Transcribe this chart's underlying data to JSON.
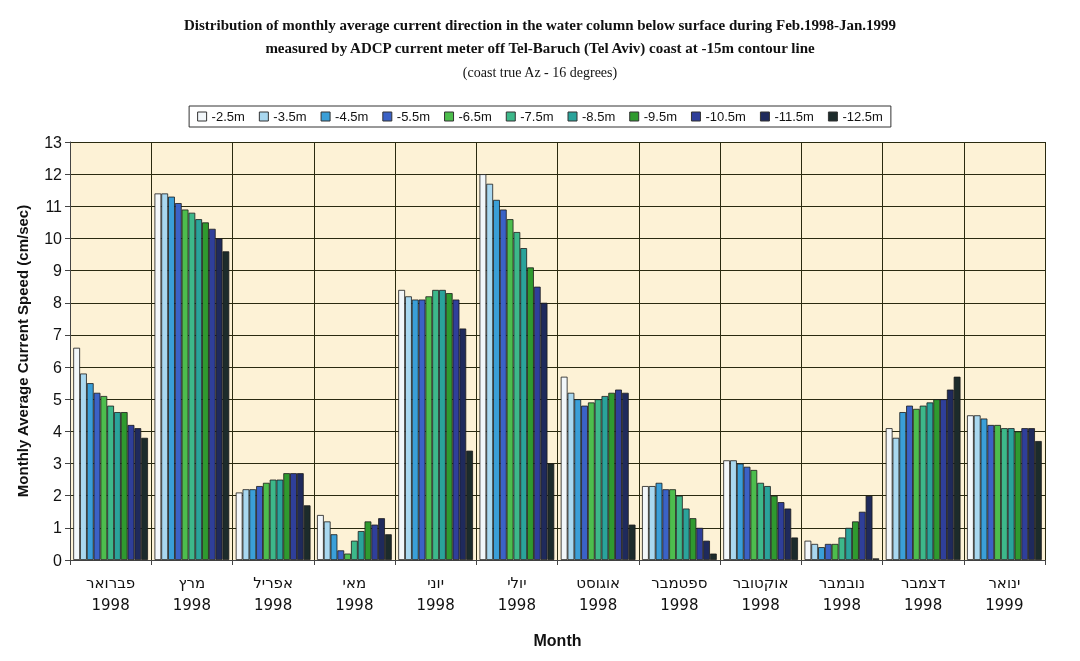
{
  "chart_data": {
    "type": "bar",
    "title": "Distribution of monthly average current direction in the water column below surface during Feb.1998-Jan.1999\nmeasured by ADCP current meter off Tel-Baruch (Tel Aviv) coast at -15m contour line",
    "subtitle": "(coast true Az - 16 degrees)",
    "xlabel": "Month",
    "ylabel": "Monthly Average Current Speed (cm/sec)",
    "categories": [
      "פברואר\n1998",
      "מרץ\n1998",
      "אפריל\n1998",
      "מאי\n1998",
      "יוני\n1998",
      "יולי\n1998",
      "אוגוסט\n1998",
      "ספטמבר\n1998",
      "אוקטובר\n1998",
      "נובמבר\n1998",
      "דצמבר\n1998",
      "ינואר\n1999"
    ],
    "series": [
      {
        "name": "-2.5m",
        "color": "#f2f7fa",
        "values": [
          6.6,
          11.4,
          2.1,
          1.4,
          8.4,
          12.0,
          5.7,
          2.3,
          3.1,
          0.6,
          4.1,
          4.5
        ]
      },
      {
        "name": "-3.5m",
        "color": "#a9d8f0",
        "values": [
          5.8,
          11.4,
          2.2,
          1.2,
          8.2,
          11.7,
          5.2,
          2.3,
          3.1,
          0.5,
          3.8,
          4.5
        ]
      },
      {
        "name": "-4.5m",
        "color": "#3a9fd8",
        "values": [
          5.5,
          11.3,
          2.2,
          0.8,
          8.1,
          11.2,
          5.0,
          2.4,
          3.0,
          0.4,
          4.6,
          4.4
        ]
      },
      {
        "name": "-5.5m",
        "color": "#3b62c6",
        "values": [
          5.2,
          11.1,
          2.3,
          0.3,
          8.1,
          10.9,
          4.8,
          2.2,
          2.9,
          0.5,
          4.8,
          4.2
        ]
      },
      {
        "name": "-6.5m",
        "color": "#4dbd4d",
        "values": [
          5.1,
          10.9,
          2.4,
          0.2,
          8.2,
          10.6,
          4.9,
          2.2,
          2.8,
          0.5,
          4.7,
          4.2
        ]
      },
      {
        "name": "-7.5m",
        "color": "#3db88a",
        "values": [
          4.8,
          10.8,
          2.5,
          0.6,
          8.4,
          10.2,
          5.0,
          2.0,
          2.4,
          0.7,
          4.8,
          4.1
        ]
      },
      {
        "name": "-8.5m",
        "color": "#2aa39b",
        "values": [
          4.6,
          10.6,
          2.5,
          0.9,
          8.4,
          9.7,
          5.1,
          1.6,
          2.3,
          1.0,
          4.9,
          4.1
        ]
      },
      {
        "name": "-9.5m",
        "color": "#2f9a2f",
        "values": [
          4.6,
          10.5,
          2.7,
          1.2,
          8.3,
          9.1,
          5.2,
          1.3,
          2.0,
          1.2,
          5.0,
          4.0
        ]
      },
      {
        "name": "-10.5m",
        "color": "#2f3f9a",
        "values": [
          4.2,
          10.3,
          2.7,
          1.1,
          8.1,
          8.5,
          5.3,
          1.0,
          1.8,
          1.5,
          5.0,
          4.1
        ]
      },
      {
        "name": "-11.5m",
        "color": "#1f2a5c",
        "values": [
          4.1,
          10.0,
          2.7,
          1.3,
          7.2,
          8.0,
          5.2,
          0.6,
          1.6,
          2.0,
          5.3,
          4.1
        ]
      },
      {
        "name": "-12.5m",
        "color": "#1c2b2b",
        "values": [
          3.8,
          9.6,
          1.7,
          0.8,
          3.4,
          3.0,
          1.1,
          0.2,
          0.7,
          0.05,
          5.7,
          3.7
        ]
      }
    ],
    "ylim": [
      0,
      13
    ],
    "yticks": [
      0,
      1,
      2,
      3,
      4,
      5,
      6,
      7,
      8,
      9,
      10,
      11,
      12,
      13
    ],
    "grid": true,
    "legend": "top"
  }
}
